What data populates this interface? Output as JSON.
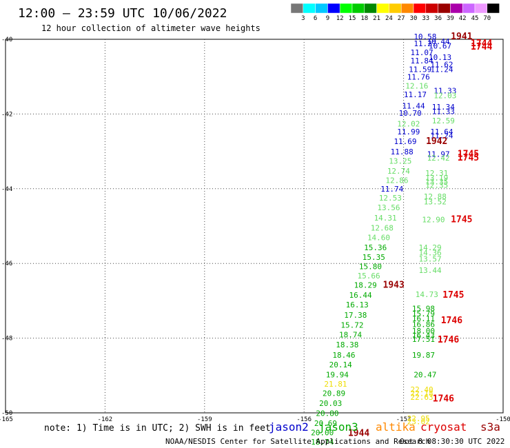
{
  "header": {
    "title": "12:00 – 23:59 UTC 10/06/2022",
    "subtitle": "12 hour collection of altimeter wave heights"
  },
  "footer": {
    "note": "note: 1) Time is in UTC; 2) SWH is in feet",
    "credit": "NOAA/NESDIS Center for Satellite Applications and Research",
    "timestamp": "Oct  8 08:30:30 UTC 2022"
  },
  "legend": [
    {
      "label": "jason2",
      "color": "#0000cc"
    },
    {
      "label": "jason3",
      "color": "#00aa00"
    },
    {
      "label": "altika",
      "color": "#ff8800"
    },
    {
      "label": "cryosat",
      "color": "#dd0000"
    },
    {
      "label": "s3a",
      "color": "#990000"
    }
  ],
  "colorbar": {
    "labels": [
      "3",
      "6",
      "9",
      "12",
      "15",
      "18",
      "21",
      "24",
      "27",
      "30",
      "33",
      "36",
      "39",
      "42",
      "45",
      "70"
    ],
    "colors": [
      "#777777",
      "#00ffff",
      "#00c8ff",
      "#0000ff",
      "#00ff00",
      "#00cc00",
      "#008800",
      "#ffff00",
      "#ffcc00",
      "#ff8800",
      "#ff0000",
      "#cc0000",
      "#990000",
      "#aa00aa",
      "#cc66ff",
      "#ee99ff",
      "#000000"
    ]
  },
  "chart_data": {
    "type": "scatter",
    "x_ticks": [
      "-165",
      "-162",
      "-159",
      "-156",
      "-153",
      "-150"
    ],
    "y_ticks": [
      "-40",
      "-42",
      "-44",
      "-46",
      "-48",
      "-50"
    ],
    "xlim": [
      -165,
      -150
    ],
    "ylim": [
      -50,
      -40
    ],
    "grid": true,
    "points": [
      {
        "x": -152.35,
        "y": -40.0,
        "label": "10.58",
        "color": "#0000cc"
      },
      {
        "x": -152.35,
        "y": -40.18,
        "label": "11.27",
        "color": "#0000cc"
      },
      {
        "x": -151.95,
        "y": -40.13,
        "label": "10.44",
        "color": "#0000cc"
      },
      {
        "x": -151.9,
        "y": -40.25,
        "label": "10.67",
        "color": "#0000cc"
      },
      {
        "x": -152.45,
        "y": -40.42,
        "label": "11.07",
        "color": "#0000cc"
      },
      {
        "x": -151.9,
        "y": -40.55,
        "label": "10.13",
        "color": "#0000cc"
      },
      {
        "x": -152.45,
        "y": -40.65,
        "label": "11.84",
        "color": "#0000cc"
      },
      {
        "x": -151.85,
        "y": -40.75,
        "label": "11.62",
        "color": "#0000cc"
      },
      {
        "x": -152.5,
        "y": -40.88,
        "label": "11.59",
        "color": "#0000cc"
      },
      {
        "x": -151.85,
        "y": -40.88,
        "label": "11.24",
        "color": "#0000cc"
      },
      {
        "x": -152.55,
        "y": -41.08,
        "label": "11.76",
        "color": "#0000cc"
      },
      {
        "x": -152.6,
        "y": -41.32,
        "label": "12.16",
        "color": "#66dd66"
      },
      {
        "x": -151.75,
        "y": -41.45,
        "label": "11.33",
        "color": "#0000cc"
      },
      {
        "x": -152.65,
        "y": -41.55,
        "label": "11.17",
        "color": "#0000cc"
      },
      {
        "x": -151.75,
        "y": -41.58,
        "label": "12.03",
        "color": "#66dd66"
      },
      {
        "x": -152.7,
        "y": -41.85,
        "label": "11.44",
        "color": "#0000cc"
      },
      {
        "x": -151.8,
        "y": -41.88,
        "label": "11.34",
        "color": "#0000cc"
      },
      {
        "x": -151.8,
        "y": -42.0,
        "label": "11.33",
        "color": "#0000cc"
      },
      {
        "x": -152.8,
        "y": -42.05,
        "label": "10.70",
        "color": "#0000cc"
      },
      {
        "x": -151.8,
        "y": -42.25,
        "label": "12.59",
        "color": "#66dd66"
      },
      {
        "x": -152.85,
        "y": -42.33,
        "label": "12.02",
        "color": "#66dd66"
      },
      {
        "x": -152.85,
        "y": -42.55,
        "label": "11.99",
        "color": "#0000cc"
      },
      {
        "x": -151.85,
        "y": -42.55,
        "label": "11.64",
        "color": "#0000cc"
      },
      {
        "x": -151.85,
        "y": -42.65,
        "label": "11.24",
        "color": "#0000cc"
      },
      {
        "x": -152.95,
        "y": -42.8,
        "label": "11.69",
        "color": "#0000cc"
      },
      {
        "x": -153.05,
        "y": -43.08,
        "label": "11.88",
        "color": "#0000cc"
      },
      {
        "x": -151.95,
        "y": -43.15,
        "label": "11.97",
        "color": "#0000cc"
      },
      {
        "x": -151.95,
        "y": -43.25,
        "label": "12.42",
        "color": "#66dd66"
      },
      {
        "x": -153.1,
        "y": -43.33,
        "label": "13.25",
        "color": "#66dd66"
      },
      {
        "x": -153.15,
        "y": -43.6,
        "label": "12.74",
        "color": "#66dd66"
      },
      {
        "x": -152.0,
        "y": -43.65,
        "label": "12.31",
        "color": "#66dd66"
      },
      {
        "x": -152.0,
        "y": -43.78,
        "label": "13.19",
        "color": "#66dd66"
      },
      {
        "x": -153.2,
        "y": -43.85,
        "label": "12.86",
        "color": "#66dd66"
      },
      {
        "x": -152.0,
        "y": -43.88,
        "label": "13.35",
        "color": "#66dd66"
      },
      {
        "x": -152.0,
        "y": -43.98,
        "label": "12.35",
        "color": "#66dd66"
      },
      {
        "x": -153.35,
        "y": -44.08,
        "label": "11.74",
        "color": "#0000cc"
      },
      {
        "x": -152.05,
        "y": -44.28,
        "label": "12.88",
        "color": "#66dd66"
      },
      {
        "x": -153.4,
        "y": -44.32,
        "label": "12.53",
        "color": "#66dd66"
      },
      {
        "x": -152.05,
        "y": -44.42,
        "label": "13.52",
        "color": "#66dd66"
      },
      {
        "x": -153.45,
        "y": -44.58,
        "label": "13.56",
        "color": "#66dd66"
      },
      {
        "x": -153.55,
        "y": -44.85,
        "label": "14.31",
        "color": "#66dd66"
      },
      {
        "x": -152.1,
        "y": -44.9,
        "label": "12.90",
        "color": "#66dd66"
      },
      {
        "x": -153.65,
        "y": -45.12,
        "label": "12.68",
        "color": "#66dd66"
      },
      {
        "x": -153.75,
        "y": -45.38,
        "label": "14.60",
        "color": "#66dd66"
      },
      {
        "x": -153.85,
        "y": -45.65,
        "label": "15.36",
        "color": "#00aa00"
      },
      {
        "x": -152.2,
        "y": -45.65,
        "label": "14.29",
        "color": "#66dd66"
      },
      {
        "x": -152.2,
        "y": -45.78,
        "label": "14.36",
        "color": "#66dd66"
      },
      {
        "x": -153.9,
        "y": -45.9,
        "label": "15.35",
        "color": "#00aa00"
      },
      {
        "x": -152.2,
        "y": -45.95,
        "label": "13.57",
        "color": "#66dd66"
      },
      {
        "x": -154.0,
        "y": -46.15,
        "label": "15.80",
        "color": "#00aa00"
      },
      {
        "x": -152.2,
        "y": -46.25,
        "label": "13.44",
        "color": "#66dd66"
      },
      {
        "x": -154.05,
        "y": -46.4,
        "label": "15.66",
        "color": "#66dd66"
      },
      {
        "x": -154.15,
        "y": -46.65,
        "label": "18.29",
        "color": "#00aa00"
      },
      {
        "x": -152.3,
        "y": -46.9,
        "label": "14.73",
        "color": "#66dd66"
      },
      {
        "x": -154.3,
        "y": -46.92,
        "label": "16.44",
        "color": "#00aa00"
      },
      {
        "x": -154.4,
        "y": -47.18,
        "label": "16.13",
        "color": "#00aa00"
      },
      {
        "x": -152.4,
        "y": -47.28,
        "label": "15.98",
        "color": "#00aa00"
      },
      {
        "x": -152.4,
        "y": -47.42,
        "label": "15.79",
        "color": "#00aa00"
      },
      {
        "x": -154.45,
        "y": -47.45,
        "label": "17.38",
        "color": "#00aa00"
      },
      {
        "x": -152.4,
        "y": -47.55,
        "label": "16.11",
        "color": "#00aa00"
      },
      {
        "x": -154.55,
        "y": -47.72,
        "label": "15.72",
        "color": "#00aa00"
      },
      {
        "x": -152.4,
        "y": -47.7,
        "label": "16.86",
        "color": "#00aa00"
      },
      {
        "x": -152.4,
        "y": -47.88,
        "label": "18.00",
        "color": "#00aa00"
      },
      {
        "x": -154.6,
        "y": -47.98,
        "label": "18.74",
        "color": "#00aa00"
      },
      {
        "x": -152.4,
        "y": -48.0,
        "label": "16.43",
        "color": "#00aa00"
      },
      {
        "x": -152.4,
        "y": -48.1,
        "label": "17.51",
        "color": "#00aa00"
      },
      {
        "x": -154.7,
        "y": -48.25,
        "label": "18.38",
        "color": "#00aa00"
      },
      {
        "x": -154.8,
        "y": -48.52,
        "label": "18.46",
        "color": "#00aa00"
      },
      {
        "x": -152.4,
        "y": -48.52,
        "label": "19.87",
        "color": "#00aa00"
      },
      {
        "x": -154.9,
        "y": -48.78,
        "label": "20.14",
        "color": "#00aa00"
      },
      {
        "x": -155.0,
        "y": -49.05,
        "label": "19.94",
        "color": "#00aa00"
      },
      {
        "x": -152.35,
        "y": -49.05,
        "label": "20.47",
        "color": "#00aa00"
      },
      {
        "x": -155.05,
        "y": -49.3,
        "label": "21.81",
        "color": "#eedd00"
      },
      {
        "x": -152.45,
        "y": -49.45,
        "label": "22.40",
        "color": "#eedd00"
      },
      {
        "x": -155.1,
        "y": -49.55,
        "label": "20.89",
        "color": "#00aa00"
      },
      {
        "x": -152.45,
        "y": -49.55,
        "label": "22.18",
        "color": "#eedd00"
      },
      {
        "x": -152.45,
        "y": -49.65,
        "label": "22.63",
        "color": "#eedd00"
      },
      {
        "x": -155.2,
        "y": -49.82,
        "label": "20.03",
        "color": "#00aa00"
      },
      {
        "x": -155.3,
        "y": -50.08,
        "label": "20.80",
        "color": "#00aa00"
      },
      {
        "x": -152.55,
        "y": -50.22,
        "label": "22.95",
        "color": "#eedd00"
      },
      {
        "x": -152.55,
        "y": -50.3,
        "label": "23.02",
        "color": "#eedd00"
      },
      {
        "x": -155.35,
        "y": -50.35,
        "label": "20.69",
        "color": "#00aa00"
      },
      {
        "x": -155.45,
        "y": -50.6,
        "label": "20.00",
        "color": "#00aa00"
      },
      {
        "x": -155.45,
        "y": -50.85,
        "label": "18.74",
        "color": "#00aa00"
      }
    ],
    "time_labels": [
      {
        "x": -151.25,
        "y": -40.0,
        "label": "1941",
        "color": "#990000"
      },
      {
        "x": -150.65,
        "y": -40.18,
        "label": "1744",
        "color": "#dd0000"
      },
      {
        "x": -150.65,
        "y": -40.28,
        "label": "1744",
        "color": "#dd0000"
      },
      {
        "x": -152.0,
        "y": -42.8,
        "label": "1942",
        "color": "#990000"
      },
      {
        "x": -151.05,
        "y": -43.15,
        "label": "1745",
        "color": "#dd0000"
      },
      {
        "x": -151.05,
        "y": -43.25,
        "label": "1745",
        "color": "#dd0000"
      },
      {
        "x": -151.25,
        "y": -44.9,
        "label": "1745",
        "color": "#dd0000"
      },
      {
        "x": -153.3,
        "y": -46.65,
        "label": "1943",
        "color": "#990000"
      },
      {
        "x": -151.5,
        "y": -46.92,
        "label": "1745",
        "color": "#dd0000"
      },
      {
        "x": -151.55,
        "y": -47.6,
        "label": "1746",
        "color": "#dd0000"
      },
      {
        "x": -151.65,
        "y": -48.12,
        "label": "1746",
        "color": "#dd0000"
      },
      {
        "x": -151.8,
        "y": -49.7,
        "label": "1746",
        "color": "#dd0000"
      },
      {
        "x": -154.35,
        "y": -50.62,
        "label": "1944",
        "color": "#990000"
      }
    ]
  }
}
